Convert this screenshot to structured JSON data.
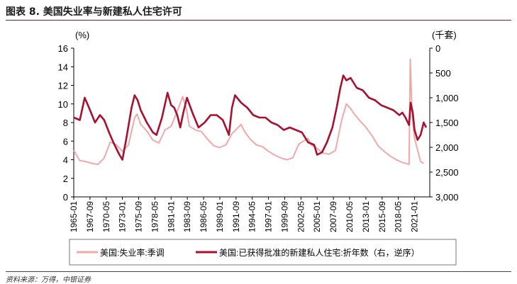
{
  "title": "图表 8. 美国失业率与新建私人住宅许可",
  "source": "资料来源：万得，中银证券",
  "chart_data": {
    "type": "line",
    "y_left_unit": "(%)",
    "y_right_unit": "(千套)",
    "ylim_left": [
      0,
      16
    ],
    "yticks_left": [
      "0",
      "2",
      "4",
      "6",
      "8",
      "10",
      "12",
      "14",
      "16"
    ],
    "ylim_right_reversed": [
      3000,
      0
    ],
    "yticks_right": [
      "0",
      "500",
      "1,000",
      "1,500",
      "2,000",
      "2,500",
      "3,000"
    ],
    "x_tick_labels": [
      "1965-01",
      "1967-09",
      "1970-05",
      "1973-01",
      "1975-09",
      "1978-05",
      "1981-01",
      "1983-09",
      "1986-05",
      "1989-01",
      "1991-09",
      "1994-05",
      "1997-01",
      "1999-09",
      "2002-05",
      "2005-01",
      "2007-09",
      "2010-05",
      "2013-01",
      "2015-09",
      "2018-05",
      "2021-01"
    ],
    "x_range_years": [
      1965.0,
      2023.5
    ],
    "grid": false,
    "legend_position": "bottom",
    "series": [
      {
        "name": "美国:失业率:季调",
        "axis": "left",
        "color": "#f0a9a9",
        "points": [
          [
            1965.0,
            5.0
          ],
          [
            1966.0,
            3.9
          ],
          [
            1967.0,
            3.8
          ],
          [
            1968.0,
            3.6
          ],
          [
            1969.0,
            3.5
          ],
          [
            1970.0,
            4.2
          ],
          [
            1971.0,
            5.9
          ],
          [
            1972.0,
            5.6
          ],
          [
            1973.0,
            4.9
          ],
          [
            1974.0,
            5.6
          ],
          [
            1975.0,
            8.5
          ],
          [
            1975.4,
            8.9
          ],
          [
            1976.0,
            7.8
          ],
          [
            1977.0,
            7.1
          ],
          [
            1978.0,
            6.1
          ],
          [
            1979.0,
            5.8
          ],
          [
            1980.0,
            7.2
          ],
          [
            1981.0,
            7.6
          ],
          [
            1982.0,
            9.2
          ],
          [
            1982.9,
            10.8
          ],
          [
            1983.5,
            9.5
          ],
          [
            1984.0,
            7.6
          ],
          [
            1985.0,
            7.2
          ],
          [
            1986.0,
            7.0
          ],
          [
            1987.0,
            6.2
          ],
          [
            1988.0,
            5.5
          ],
          [
            1989.0,
            5.3
          ],
          [
            1990.0,
            5.6
          ],
          [
            1991.0,
            6.8
          ],
          [
            1992.5,
            7.8
          ],
          [
            1993.0,
            7.1
          ],
          [
            1994.0,
            6.2
          ],
          [
            1995.0,
            5.6
          ],
          [
            1996.0,
            5.4
          ],
          [
            1997.0,
            4.9
          ],
          [
            1998.0,
            4.5
          ],
          [
            1999.0,
            4.2
          ],
          [
            2000.0,
            4.0
          ],
          [
            2001.0,
            4.2
          ],
          [
            2002.0,
            5.7
          ],
          [
            2003.5,
            6.3
          ],
          [
            2004.0,
            5.6
          ],
          [
            2005.0,
            5.2
          ],
          [
            2006.0,
            4.7
          ],
          [
            2007.0,
            4.6
          ],
          [
            2008.0,
            5.0
          ],
          [
            2009.0,
            8.2
          ],
          [
            2009.8,
            10.0
          ],
          [
            2010.5,
            9.5
          ],
          [
            2011.0,
            9.0
          ],
          [
            2012.0,
            8.2
          ],
          [
            2013.0,
            7.5
          ],
          [
            2014.0,
            6.6
          ],
          [
            2015.0,
            5.5
          ],
          [
            2016.0,
            4.9
          ],
          [
            2017.0,
            4.4
          ],
          [
            2018.0,
            4.0
          ],
          [
            2019.0,
            3.7
          ],
          [
            2020.1,
            3.5
          ],
          [
            2020.3,
            14.8
          ],
          [
            2020.6,
            8.8
          ],
          [
            2021.0,
            6.3
          ],
          [
            2022.0,
            3.8
          ],
          [
            2022.5,
            3.6
          ]
        ]
      },
      {
        "name": "美国:已获得批准的新建私人住宅:折年数（右，逆序）",
        "axis": "right",
        "color": "#a8102e",
        "points": [
          [
            1965.0,
            1400
          ],
          [
            1966.0,
            1450
          ],
          [
            1966.8,
            1000
          ],
          [
            1967.5,
            1200
          ],
          [
            1968.5,
            1500
          ],
          [
            1969.3,
            1350
          ],
          [
            1970.0,
            1450
          ],
          [
            1970.8,
            1700
          ],
          [
            1971.5,
            1900
          ],
          [
            1972.5,
            2150
          ],
          [
            1973.0,
            2250
          ],
          [
            1973.6,
            1850
          ],
          [
            1974.5,
            1200
          ],
          [
            1975.0,
            950
          ],
          [
            1975.5,
            1050
          ],
          [
            1976.0,
            1250
          ],
          [
            1977.0,
            1500
          ],
          [
            1978.0,
            1700
          ],
          [
            1978.6,
            1750
          ],
          [
            1979.5,
            1400
          ],
          [
            1980.4,
            900
          ],
          [
            1981.0,
            1150
          ],
          [
            1981.5,
            1200
          ],
          [
            1982.0,
            1350
          ],
          [
            1982.5,
            1600
          ],
          [
            1983.0,
            1300
          ],
          [
            1983.6,
            1000
          ],
          [
            1984.5,
            1300
          ],
          [
            1985.5,
            1600
          ],
          [
            1986.5,
            1500
          ],
          [
            1987.5,
            1350
          ],
          [
            1988.5,
            1350
          ],
          [
            1989.5,
            1450
          ],
          [
            1990.5,
            1750
          ],
          [
            1991.0,
            1200
          ],
          [
            1991.5,
            950
          ],
          [
            1992.5,
            1100
          ],
          [
            1993.5,
            1200
          ],
          [
            1994.5,
            1350
          ],
          [
            1995.5,
            1400
          ],
          [
            1996.5,
            1400
          ],
          [
            1997.5,
            1500
          ],
          [
            1998.5,
            1550
          ],
          [
            1999.5,
            1650
          ],
          [
            2000.5,
            1600
          ],
          [
            2001.5,
            1650
          ],
          [
            2002.5,
            1700
          ],
          [
            2003.5,
            1900
          ],
          [
            2004.5,
            1950
          ],
          [
            2005.0,
            2150
          ],
          [
            2005.8,
            2100
          ],
          [
            2006.6,
            1900
          ],
          [
            2007.5,
            1600
          ],
          [
            2008.2,
            1200
          ],
          [
            2008.8,
            800
          ],
          [
            2009.3,
            550
          ],
          [
            2009.8,
            650
          ],
          [
            2010.5,
            600
          ],
          [
            2011.0,
            700
          ],
          [
            2011.5,
            800
          ],
          [
            2012.5,
            850
          ],
          [
            2013.5,
            1000
          ],
          [
            2014.5,
            1050
          ],
          [
            2015.5,
            1150
          ],
          [
            2016.5,
            1200
          ],
          [
            2017.5,
            1250
          ],
          [
            2018.5,
            1350
          ],
          [
            2019.0,
            1300
          ],
          [
            2019.5,
            1400
          ],
          [
            2020.1,
            1550
          ],
          [
            2020.35,
            1100
          ],
          [
            2020.7,
            1300
          ],
          [
            2021.0,
            1650
          ],
          [
            2021.5,
            1850
          ],
          [
            2022.0,
            1750
          ],
          [
            2022.5,
            1500
          ],
          [
            2022.9,
            1600
          ]
        ]
      }
    ]
  }
}
